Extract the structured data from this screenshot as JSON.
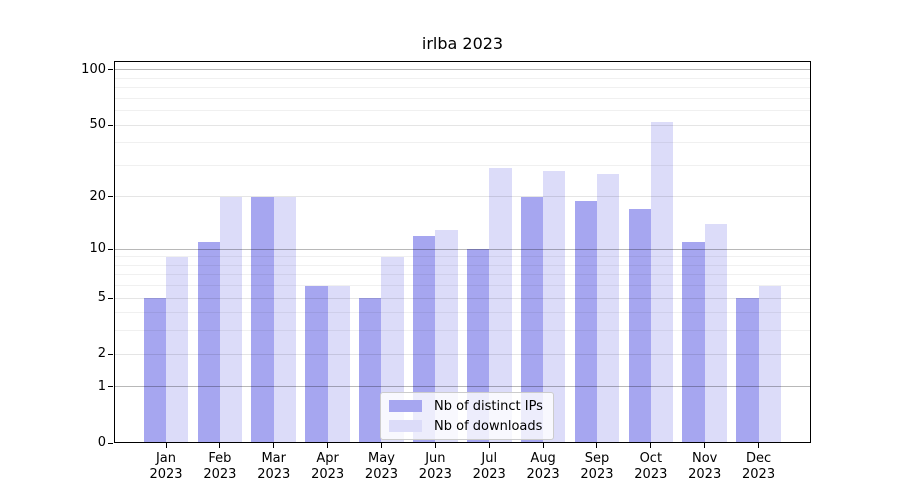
{
  "title": "irlba 2023",
  "chart_data": {
    "type": "bar",
    "title": "irlba 2023",
    "x_axis": {
      "categories": [
        "Jan",
        "Feb",
        "Mar",
        "Apr",
        "May",
        "Jun",
        "Jul",
        "Aug",
        "Sep",
        "Oct",
        "Nov",
        "Dec"
      ],
      "year_label": "2023"
    },
    "y_axis": {
      "scale": "log1p",
      "ticks": [
        0,
        1,
        2,
        5,
        10,
        20,
        50,
        100
      ],
      "major_gridlines": [
        1,
        10,
        100
      ],
      "mid_gridlines": [
        2,
        5,
        20,
        50
      ],
      "minor_gridlines": [
        3,
        4,
        6,
        7,
        8,
        9,
        30,
        40,
        60,
        70,
        80,
        90
      ],
      "ylim": [
        0,
        112
      ]
    },
    "series": [
      {
        "name": "Nb of distinct IPs",
        "color": "#a6a6f0",
        "values": [
          5,
          11,
          20,
          6,
          5,
          12,
          10,
          20,
          19,
          17,
          11,
          5
        ]
      },
      {
        "name": "Nb of downloads",
        "color": "#dcdcf9",
        "values": [
          9,
          20,
          20,
          6,
          9,
          13,
          29,
          28,
          27,
          52,
          14,
          6
        ]
      }
    ],
    "legend": {
      "entries": [
        "Nb of distinct IPs",
        "Nb of downloads"
      ],
      "position": "lower center"
    },
    "grid": "on"
  }
}
